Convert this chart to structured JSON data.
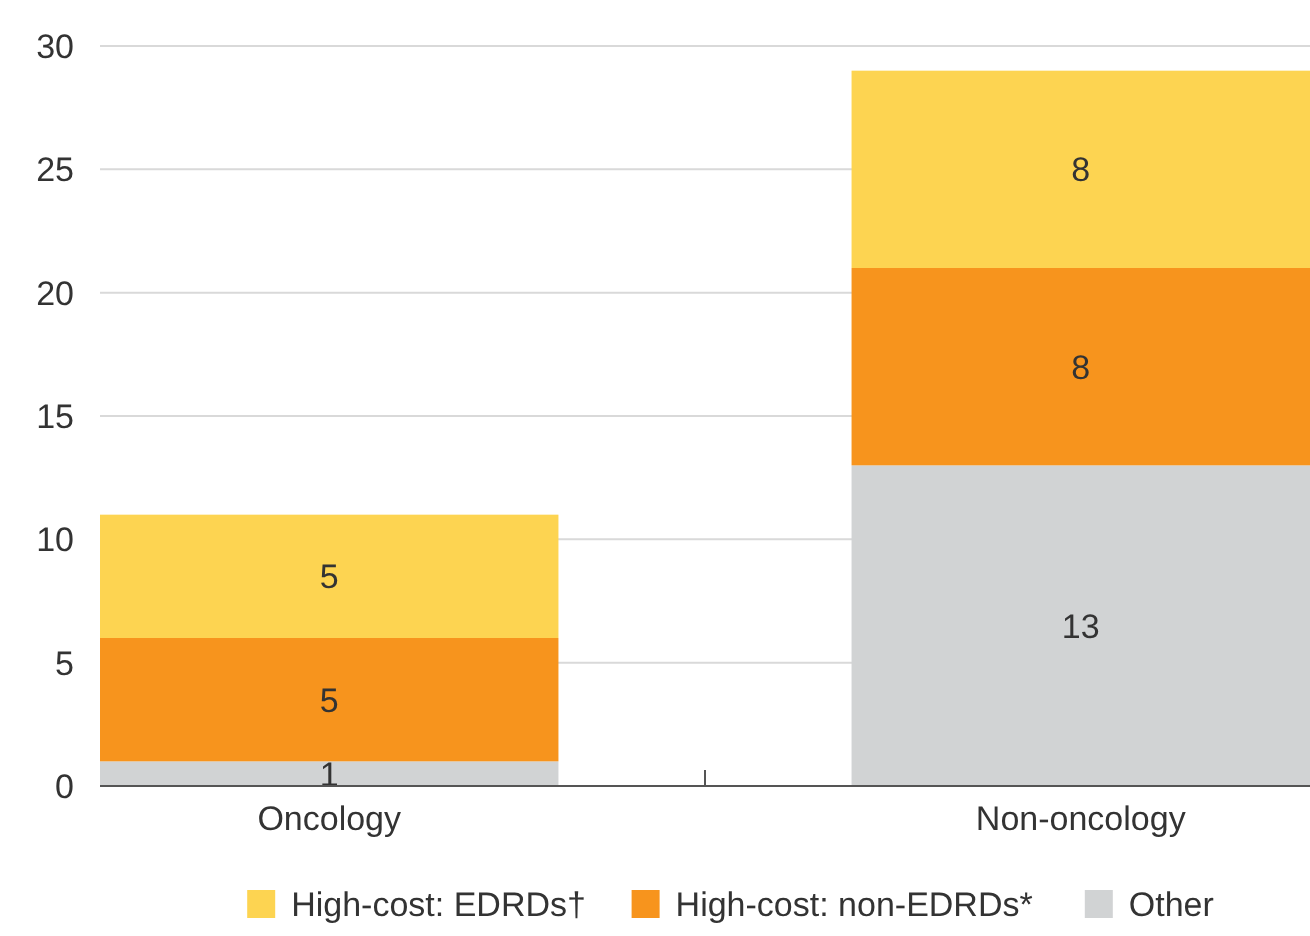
{
  "chart_data": {
    "type": "bar",
    "stacked": true,
    "categories": [
      "Oncology",
      "Non-oncology"
    ],
    "series": [
      {
        "name": "Other",
        "color": "#d1d3d4",
        "values": [
          1,
          13
        ]
      },
      {
        "name": "High-cost: non-EDRDs*",
        "color": "#f7941d",
        "values": [
          5,
          8
        ]
      },
      {
        "name": "High-cost: EDRDs†",
        "color": "#fdd451",
        "values": [
          5,
          8
        ]
      }
    ],
    "ylim": [
      0,
      30
    ],
    "yticks": [
      0,
      5,
      10,
      15,
      20,
      25,
      30
    ],
    "grid": "y",
    "legend": "bottom",
    "data_labels": true
  }
}
